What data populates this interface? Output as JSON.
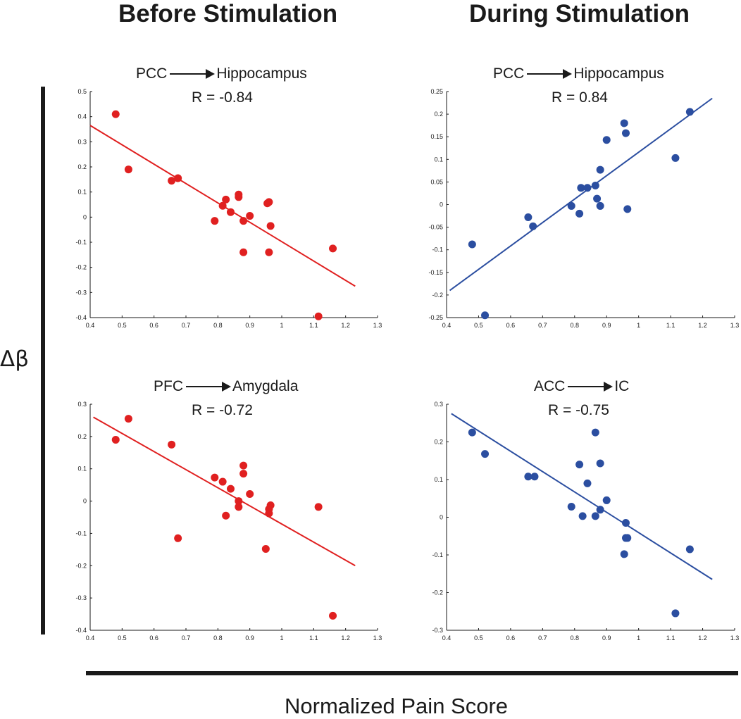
{
  "figure": {
    "col_titles": [
      "Before Stimulation",
      "During Stimulation"
    ],
    "ylabel": "Δβ",
    "xlabel": "Normalized Pain Score"
  },
  "panels": [
    {
      "from": "PCC",
      "to": "Hippocampus",
      "r_text": "R = -0.84"
    },
    {
      "from": "PCC",
      "to": "Hippocampus",
      "r_text": "R = 0.84"
    },
    {
      "from": "PFC",
      "to": "Amygdala",
      "r_text": "R = -0.72"
    },
    {
      "from": "ACC",
      "to": "IC",
      "r_text": "R = -0.75"
    }
  ],
  "chart_data": [
    {
      "type": "scatter",
      "title": "PCC → Hippocampus, Before Stimulation",
      "xlabel": "Normalized Pain Score",
      "ylabel": "Δβ",
      "color": "#e02020",
      "xlim": [
        0.4,
        1.3
      ],
      "ylim": [
        -0.4,
        0.5
      ],
      "xticks": [
        "0.4",
        "0.5",
        "0.6",
        "0.7",
        "0.8",
        "0.9",
        "1",
        "1.1",
        "1.2",
        "1.3"
      ],
      "yticks": [
        "0.5",
        "0.4",
        "0.3",
        "0.2",
        "0.1",
        "0",
        "-0.1",
        "-0.2",
        "-0.3",
        "-0.4"
      ],
      "points": [
        [
          0.48,
          0.41
        ],
        [
          0.52,
          0.19
        ],
        [
          0.655,
          0.145
        ],
        [
          0.675,
          0.155
        ],
        [
          0.79,
          -0.015
        ],
        [
          0.815,
          0.045
        ],
        [
          0.825,
          0.07
        ],
        [
          0.84,
          0.02
        ],
        [
          0.865,
          0.08
        ],
        [
          0.865,
          0.09
        ],
        [
          0.88,
          -0.015
        ],
        [
          0.88,
          -0.14
        ],
        [
          0.9,
          0.005
        ],
        [
          0.955,
          0.055
        ],
        [
          0.96,
          0.06
        ],
        [
          0.96,
          -0.14
        ],
        [
          0.965,
          -0.035
        ],
        [
          1.115,
          -0.395
        ],
        [
          1.16,
          -0.125
        ]
      ],
      "fit": [
        [
          0.4,
          0.365
        ],
        [
          1.23,
          -0.275
        ]
      ]
    },
    {
      "type": "scatter",
      "title": "PCC → Hippocampus, During Stimulation",
      "xlabel": "Normalized Pain Score",
      "ylabel": "Δβ",
      "color": "#2b4ea0",
      "xlim": [
        0.4,
        1.3
      ],
      "ylim": [
        -0.25,
        0.25
      ],
      "xticks": [
        "0.4",
        "0.5",
        "0.6",
        "0.7",
        "0.8",
        "0.9",
        "1",
        "1.1",
        "1.2",
        "1.3"
      ],
      "yticks": [
        "0.25",
        "0.2",
        "0.15",
        "0.1",
        "0.05",
        "0",
        "-0.05",
        "-0.1",
        "-0.15",
        "-0.2",
        "-0.25"
      ],
      "points": [
        [
          0.48,
          -0.088
        ],
        [
          0.52,
          -0.245
        ],
        [
          0.655,
          -0.028
        ],
        [
          0.67,
          -0.048
        ],
        [
          0.79,
          -0.003
        ],
        [
          0.815,
          -0.02
        ],
        [
          0.82,
          0.037
        ],
        [
          0.84,
          0.037
        ],
        [
          0.865,
          0.042
        ],
        [
          0.87,
          0.013
        ],
        [
          0.88,
          -0.003
        ],
        [
          0.88,
          0.077
        ],
        [
          0.9,
          0.143
        ],
        [
          0.955,
          0.18
        ],
        [
          0.96,
          0.158
        ],
        [
          0.965,
          -0.01
        ],
        [
          1.115,
          0.103
        ],
        [
          1.16,
          0.205
        ]
      ],
      "fit": [
        [
          0.41,
          -0.19
        ],
        [
          1.23,
          0.235
        ]
      ]
    },
    {
      "type": "scatter",
      "title": "PFC → Amygdala, Before Stimulation",
      "xlabel": "Normalized Pain Score",
      "ylabel": "Δβ",
      "color": "#e02020",
      "xlim": [
        0.4,
        1.3
      ],
      "ylim": [
        -0.4,
        0.3
      ],
      "xticks": [
        "0.4",
        "0.5",
        "0.6",
        "0.7",
        "0.8",
        "0.9",
        "1",
        "1.1",
        "1.2",
        "1.3"
      ],
      "yticks": [
        "0.3",
        "0.2",
        "0.1",
        "0",
        "-0.1",
        "-0.2",
        "-0.3",
        "-0.4"
      ],
      "points": [
        [
          0.48,
          0.19
        ],
        [
          0.52,
          0.255
        ],
        [
          0.655,
          0.175
        ],
        [
          0.675,
          -0.115
        ],
        [
          0.79,
          0.073
        ],
        [
          0.815,
          0.06
        ],
        [
          0.825,
          -0.045
        ],
        [
          0.84,
          0.038
        ],
        [
          0.865,
          0.0
        ],
        [
          0.865,
          -0.018
        ],
        [
          0.88,
          0.11
        ],
        [
          0.88,
          0.085
        ],
        [
          0.9,
          0.022
        ],
        [
          0.95,
          -0.148
        ],
        [
          0.96,
          -0.025
        ],
        [
          0.96,
          -0.038
        ],
        [
          0.965,
          -0.013
        ],
        [
          1.115,
          -0.018
        ],
        [
          1.16,
          -0.355
        ]
      ],
      "fit": [
        [
          0.41,
          0.26
        ],
        [
          1.23,
          -0.2
        ]
      ]
    },
    {
      "type": "scatter",
      "title": "ACC → IC, During Stimulation",
      "xlabel": "Normalized Pain Score",
      "ylabel": "Δβ",
      "color": "#2b4ea0",
      "xlim": [
        0.4,
        1.3
      ],
      "ylim": [
        -0.3,
        0.3
      ],
      "xticks": [
        "0.4",
        "0.5",
        "0.6",
        "0.7",
        "0.8",
        "0.9",
        "1",
        "1.1",
        "1.2",
        "1.3"
      ],
      "yticks": [
        "0.3",
        "0.2",
        "0.1",
        "0",
        "-0.1",
        "-0.2",
        "-0.3"
      ],
      "points": [
        [
          0.48,
          0.225
        ],
        [
          0.52,
          0.168
        ],
        [
          0.655,
          0.108
        ],
        [
          0.675,
          0.108
        ],
        [
          0.79,
          0.028
        ],
        [
          0.815,
          0.14
        ],
        [
          0.825,
          0.003
        ],
        [
          0.84,
          0.09
        ],
        [
          0.865,
          0.225
        ],
        [
          0.865,
          0.003
        ],
        [
          0.88,
          0.143
        ],
        [
          0.88,
          0.02
        ],
        [
          0.9,
          0.045
        ],
        [
          0.955,
          -0.098
        ],
        [
          0.96,
          -0.055
        ],
        [
          0.96,
          -0.015
        ],
        [
          0.965,
          -0.055
        ],
        [
          1.115,
          -0.255
        ],
        [
          1.16,
          -0.085
        ]
      ],
      "fit": [
        [
          0.415,
          0.275
        ],
        [
          1.23,
          -0.165
        ]
      ]
    }
  ]
}
